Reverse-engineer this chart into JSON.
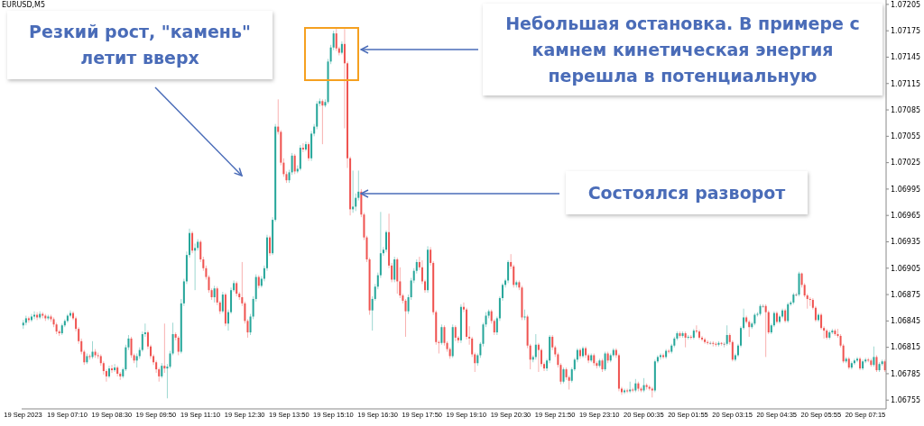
{
  "chart_data": {
    "type": "candlestick",
    "title": "EURUSD,M5",
    "categories": [
      "19 Sep 2023",
      null,
      null,
      null,
      null,
      null,
      null,
      null,
      null,
      null,
      null,
      null,
      null,
      null,
      null,
      null,
      "19 Sep 07:10",
      null,
      null,
      null,
      null,
      null,
      null,
      null,
      null,
      null,
      null,
      null,
      null,
      null,
      null,
      null,
      "19 Sep 08:30",
      null,
      null,
      null,
      null,
      null,
      null,
      null,
      null,
      null,
      null,
      null,
      null,
      null,
      null,
      null,
      "19 Sep 09:50",
      null,
      null,
      null,
      null,
      null,
      null,
      null,
      null,
      null,
      null,
      null,
      null,
      null,
      null,
      null,
      "19 Sep 11:10",
      null,
      null,
      null,
      null,
      null,
      null,
      null,
      null,
      null,
      null,
      null,
      null,
      null,
      null,
      null,
      "19 Sep 12:30",
      null,
      null,
      null,
      null,
      null,
      null,
      null,
      null,
      null,
      null,
      null,
      null,
      null,
      null,
      null,
      "19 Sep 13:50",
      null,
      null,
      null,
      null,
      null,
      null,
      null,
      null,
      null,
      null,
      null,
      null,
      null,
      null,
      null,
      "19 Sep 15:10",
      null,
      null,
      null,
      null,
      null,
      null,
      null,
      null,
      null,
      null,
      null,
      null,
      null,
      null,
      null,
      "19 Sep 16:30",
      null,
      null,
      null,
      null,
      null,
      null,
      null,
      null,
      null,
      null,
      null,
      null,
      null,
      null,
      null,
      "19 Sep 17:50",
      null,
      null,
      null,
      null,
      null,
      null,
      null,
      null,
      null,
      null,
      null,
      null,
      null,
      null,
      null,
      "19 Sep 19:10",
      null,
      null,
      null,
      null,
      null,
      null,
      null,
      null,
      null,
      null,
      null,
      null,
      null,
      null,
      null,
      "19 Sep 20:30",
      null,
      null,
      null,
      null,
      null,
      null,
      null,
      null,
      null,
      null,
      null,
      null,
      null,
      null,
      null,
      "19 Sep 21:50",
      null,
      null,
      null,
      null,
      null,
      null,
      null,
      null,
      null,
      null,
      null,
      null,
      null,
      null,
      null,
      "19 Sep 23:10",
      null,
      null,
      null,
      null,
      null,
      null,
      null,
      null,
      null,
      null,
      null,
      null,
      null,
      null,
      null,
      "20 Sep 00:35",
      null,
      null,
      null,
      null,
      null,
      null,
      null,
      null,
      null,
      null,
      null,
      null,
      null,
      null,
      null,
      "20 Sep 01:55",
      null,
      null,
      null,
      null,
      null,
      null,
      null,
      null,
      null,
      null,
      null,
      null,
      null,
      null,
      null,
      "20 Sep 03:15",
      null,
      null,
      null,
      null,
      null,
      null,
      null,
      null,
      null,
      null,
      null,
      null,
      null,
      null,
      null,
      "20 Sep 04:35",
      null,
      null,
      null,
      null,
      null,
      null,
      null,
      null,
      null,
      null,
      null,
      null,
      null,
      null,
      null,
      "20 Sep 05:55",
      null,
      null,
      null,
      null,
      null,
      null,
      null,
      null,
      null,
      null,
      null,
      null,
      null,
      null,
      null,
      "20 Sep 07:15",
      null,
      null,
      null,
      null,
      null,
      null,
      null
    ],
    "ohlc": [
      [
        1.0684,
        1.06846,
        1.06836,
        1.06843
      ],
      [
        1.06843,
        1.06851,
        1.0684,
        1.06848
      ],
      [
        1.06848,
        1.0685,
        1.06843,
        1.06846
      ],
      [
        1.06846,
        1.06853,
        1.06844,
        1.0685
      ],
      [
        1.0685,
        1.06856,
        1.06847,
        1.06852
      ],
      [
        1.06852,
        1.06855,
        1.06846,
        1.06849
      ],
      [
        1.06849,
        1.06856,
        1.06847,
        1.06853
      ],
      [
        1.06853,
        1.06855,
        1.06848,
        1.06851
      ],
      [
        1.06851,
        1.06853,
        1.06845,
        1.06848
      ],
      [
        1.06848,
        1.06852,
        1.06846,
        1.0685
      ],
      [
        1.0685,
        1.06852,
        1.06844,
        1.06847
      ],
      [
        1.06847,
        1.06849,
        1.06838,
        1.06841
      ],
      [
        1.06841,
        1.06843,
        1.0683,
        1.06833
      ],
      [
        1.06833,
        1.06835,
        1.06828,
        1.06831
      ],
      [
        1.06831,
        1.06842,
        1.06829,
        1.0684
      ],
      [
        1.0684,
        1.06847,
        1.06838,
        1.06845
      ],
      [
        1.06845,
        1.06853,
        1.06843,
        1.06851
      ],
      [
        1.06851,
        1.06857,
        1.06849,
        1.06854
      ],
      [
        1.06854,
        1.06856,
        1.06846,
        1.06848
      ],
      [
        1.06848,
        1.0685,
        1.06833,
        1.06836
      ],
      [
        1.06836,
        1.06838,
        1.06819,
        1.06822
      ],
      [
        1.06822,
        1.06825,
        1.06807,
        1.0681
      ],
      [
        1.0681,
        1.06812,
        1.06795,
        1.06798
      ],
      [
        1.06798,
        1.06808,
        1.06796,
        1.06805
      ],
      [
        1.06805,
        1.06807,
        1.06801,
        1.06804
      ],
      [
        1.06804,
        1.06822,
        1.06802,
        1.0681
      ],
      [
        1.0681,
        1.06813,
        1.06803,
        1.06806
      ],
      [
        1.06806,
        1.06809,
        1.06802,
        1.06805
      ],
      [
        1.06805,
        1.06807,
        1.06794,
        1.06797
      ],
      [
        1.06797,
        1.06799,
        1.06784,
        1.06788
      ],
      [
        1.06788,
        1.0679,
        1.06776,
        1.06782
      ],
      [
        1.06782,
        1.06794,
        1.0678,
        1.06791
      ],
      [
        1.06791,
        1.06795,
        1.06786,
        1.06789
      ],
      [
        1.06789,
        1.06796,
        1.06787,
        1.06792
      ],
      [
        1.06792,
        1.06794,
        1.06782,
        1.06785
      ],
      [
        1.06785,
        1.06787,
        1.06778,
        1.06782
      ],
      [
        1.06782,
        1.06792,
        1.0678,
        1.0679
      ],
      [
        1.0679,
        1.06818,
        1.06788,
        1.06815
      ],
      [
        1.06815,
        1.06829,
        1.06812,
        1.06825
      ],
      [
        1.06825,
        1.06827,
        1.06803,
        1.06806
      ],
      [
        1.06806,
        1.06808,
        1.06797,
        1.068
      ],
      [
        1.068,
        1.06808,
        1.06792,
        1.06805
      ],
      [
        1.06805,
        1.06815,
        1.06802,
        1.06812
      ],
      [
        1.06812,
        1.06833,
        1.0681,
        1.0683
      ],
      [
        1.0683,
        1.06842,
        1.06827,
        1.06832
      ],
      [
        1.06832,
        1.06834,
        1.06813,
        1.06816
      ],
      [
        1.06816,
        1.06818,
        1.06802,
        1.06805
      ],
      [
        1.06805,
        1.06807,
        1.06795,
        1.06798
      ],
      [
        1.06798,
        1.068,
        1.06786,
        1.0679
      ],
      [
        1.0679,
        1.06792,
        1.06776,
        1.06782
      ],
      [
        1.06782,
        1.06797,
        1.0678,
        1.06794
      ],
      [
        1.06794,
        1.06842,
        1.06786,
        1.06791
      ],
      [
        1.06791,
        1.06796,
        1.06757,
        1.06793
      ],
      [
        1.06793,
        1.06811,
        1.06791,
        1.06808
      ],
      [
        1.06808,
        1.06843,
        1.06806,
        1.0683
      ],
      [
        1.0683,
        1.06832,
        1.06823,
        1.06826
      ],
      [
        1.06826,
        1.06828,
        1.06806,
        1.0681
      ],
      [
        1.0681,
        1.0687,
        1.06808,
        1.06865
      ],
      [
        1.06865,
        1.06893,
        1.06862,
        1.0689
      ],
      [
        1.0689,
        1.06924,
        1.06887,
        1.0692
      ],
      [
        1.0692,
        1.0695,
        1.06917,
        1.06945
      ],
      [
        1.06945,
        1.06947,
        1.06922,
        1.06925
      ],
      [
        1.06925,
        1.06933,
        1.0688,
        1.06928
      ],
      [
        1.06928,
        1.06938,
        1.06925,
        1.06935
      ],
      [
        1.06935,
        1.06937,
        1.06912,
        1.06915
      ],
      [
        1.06915,
        1.06918,
        1.06902,
        1.06905
      ],
      [
        1.06905,
        1.06908,
        1.06892,
        1.06895
      ],
      [
        1.06895,
        1.06897,
        1.06877,
        1.0688
      ],
      [
        1.0688,
        1.06882,
        1.06869,
        1.06872
      ],
      [
        1.06872,
        1.06885,
        1.06866,
        1.06882
      ],
      [
        1.06882,
        1.06884,
        1.06863,
        1.06866
      ],
      [
        1.06866,
        1.06868,
        1.06853,
        1.06856
      ],
      [
        1.06856,
        1.06878,
        1.06854,
        1.06875
      ],
      [
        1.06875,
        1.06877,
        1.06839,
        1.06842
      ],
      [
        1.06842,
        1.06858,
        1.06834,
        1.06855
      ],
      [
        1.06855,
        1.06883,
        1.06853,
        1.0688
      ],
      [
        1.0688,
        1.06891,
        1.06878,
        1.06888
      ],
      [
        1.06888,
        1.0689,
        1.06873,
        1.06876
      ],
      [
        1.06876,
        1.06878,
        1.06869,
        1.06872
      ],
      [
        1.06872,
        1.06912,
        1.06862,
        1.06865
      ],
      [
        1.06865,
        1.06867,
        1.06842,
        1.06845
      ],
      [
        1.06845,
        1.06847,
        1.06826,
        1.06832
      ],
      [
        1.06832,
        1.06853,
        1.06829,
        1.0685
      ],
      [
        1.0685,
        1.06873,
        1.06847,
        1.0687
      ],
      [
        1.0687,
        1.06898,
        1.06867,
        1.06895
      ],
      [
        1.06895,
        1.06897,
        1.06882,
        1.06885
      ],
      [
        1.06885,
        1.06896,
        1.06883,
        1.06893
      ],
      [
        1.06893,
        1.06908,
        1.0689,
        1.06905
      ],
      [
        1.06905,
        1.06943,
        1.06902,
        1.0694
      ],
      [
        1.0694,
        1.06942,
        1.06919,
        1.06922
      ],
      [
        1.06922,
        1.06963,
        1.0692,
        1.0696
      ],
      [
        1.0696,
        1.07069,
        1.06958,
        1.07066
      ],
      [
        1.07066,
        1.07097,
        1.07057,
        1.0706
      ],
      [
        1.0706,
        1.07062,
        1.07022,
        1.07025
      ],
      [
        1.07025,
        1.0703,
        1.07009,
        1.07012
      ],
      [
        1.07012,
        1.07015,
        1.07002,
        1.07005
      ],
      [
        1.07005,
        1.07017,
        1.07002,
        1.07014
      ],
      [
        1.07014,
        1.07036,
        1.07011,
        1.07033
      ],
      [
        1.07033,
        1.07035,
        1.07012,
        1.07015
      ],
      [
        1.07015,
        1.07022,
        1.07013,
        1.07018
      ],
      [
        1.07018,
        1.07045,
        1.07016,
        1.07042
      ],
      [
        1.07042,
        1.07047,
        1.07037,
        1.0704
      ],
      [
        1.0704,
        1.07049,
        1.07038,
        1.07046
      ],
      [
        1.07046,
        1.07048,
        1.07027,
        1.0703
      ],
      [
        1.0703,
        1.07061,
        1.07027,
        1.07058
      ],
      [
        1.07058,
        1.07069,
        1.07055,
        1.07066
      ],
      [
        1.07066,
        1.07095,
        1.07063,
        1.07092
      ],
      [
        1.07092,
        1.07098,
        1.07089,
        1.07095
      ],
      [
        1.07095,
        1.07097,
        1.07046,
        1.0709
      ],
      [
        1.0709,
        1.07097,
        1.07088,
        1.07094
      ],
      [
        1.07094,
        1.07143,
        1.07092,
        1.0714
      ],
      [
        1.0714,
        1.07159,
        1.07137,
        1.07156
      ],
      [
        1.07156,
        1.07175,
        1.07153,
        1.07172
      ],
      [
        1.07172,
        1.07179,
        1.07152,
        1.07155
      ],
      [
        1.07155,
        1.07157,
        1.07147,
        1.0715
      ],
      [
        1.0715,
        1.07163,
        1.07148,
        1.0716
      ],
      [
        1.0716,
        1.07177,
        1.07064,
        1.07138
      ],
      [
        1.07138,
        1.0714,
        1.07019,
        1.0703
      ],
      [
        1.0703,
        1.07032,
        1.06965,
        1.06972
      ],
      [
        1.06972,
        1.07016,
        1.06968,
        1.06975
      ],
      [
        1.06975,
        1.0699,
        1.0697,
        1.06985
      ],
      [
        1.06985,
        1.07016,
        1.06982,
        1.06992
      ],
      [
        1.06992,
        1.06995,
        1.06963,
        1.06966
      ],
      [
        1.06966,
        1.06968,
        1.06937,
        1.0694
      ],
      [
        1.0694,
        1.06942,
        1.06912,
        1.06915
      ],
      [
        1.06915,
        1.06917,
        1.06852,
        1.06857
      ],
      [
        1.06857,
        1.06873,
        1.06834,
        1.0687
      ],
      [
        1.0687,
        1.06887,
        1.06868,
        1.06884
      ],
      [
        1.06884,
        1.069,
        1.06881,
        1.06897
      ],
      [
        1.06897,
        1.06969,
        1.06894,
        1.06922
      ],
      [
        1.06922,
        1.06929,
        1.06919,
        1.06926
      ],
      [
        1.06926,
        1.06948,
        1.06923,
        1.06946
      ],
      [
        1.06946,
        1.06967,
        1.06905,
        1.06908
      ],
      [
        1.06908,
        1.06911,
        1.06889,
        1.06892
      ],
      [
        1.06892,
        1.06918,
        1.06889,
        1.06915
      ],
      [
        1.06915,
        1.06917,
        1.06876,
        1.0689
      ],
      [
        1.0689,
        1.06906,
        1.06871,
        1.06874
      ],
      [
        1.06874,
        1.06876,
        1.06865,
        1.06868
      ],
      [
        1.06868,
        1.0687,
        1.06827,
        1.06856
      ],
      [
        1.06856,
        1.06875,
        1.06853,
        1.06872
      ],
      [
        1.06872,
        1.06894,
        1.06869,
        1.06891
      ],
      [
        1.06891,
        1.06905,
        1.06888,
        1.06902
      ],
      [
        1.06902,
        1.06915,
        1.06899,
        1.06912
      ],
      [
        1.06912,
        1.06918,
        1.06903,
        1.06906
      ],
      [
        1.06906,
        1.06914,
        1.06887,
        1.0689
      ],
      [
        1.0689,
        1.06892,
        1.06877,
        1.0688
      ],
      [
        1.0688,
        1.0693,
        1.06877,
        1.06926
      ],
      [
        1.06926,
        1.06929,
        1.06908,
        1.06911
      ],
      [
        1.06911,
        1.06913,
        1.06852,
        1.06855
      ],
      [
        1.06855,
        1.06857,
        1.06818,
        1.06821
      ],
      [
        1.06821,
        1.06823,
        1.06808,
        1.0682
      ],
      [
        1.0682,
        1.06841,
        1.06818,
        1.06838
      ],
      [
        1.06838,
        1.0684,
        1.06817,
        1.0682
      ],
      [
        1.0682,
        1.06822,
        1.0681,
        1.06813
      ],
      [
        1.06813,
        1.06815,
        1.06802,
        1.06805
      ],
      [
        1.06805,
        1.06841,
        1.06803,
        1.06838
      ],
      [
        1.06838,
        1.0684,
        1.06822,
        1.06826
      ],
      [
        1.06826,
        1.06828,
        1.0682,
        1.06823
      ],
      [
        1.06823,
        1.06864,
        1.0682,
        1.06861
      ],
      [
        1.06861,
        1.06866,
        1.06855,
        1.06858
      ],
      [
        1.06858,
        1.0686,
        1.06824,
        1.06827
      ],
      [
        1.06827,
        1.06839,
        1.06818,
        1.06825
      ],
      [
        1.06825,
        1.06827,
        1.06804,
        1.06807
      ],
      [
        1.06807,
        1.06809,
        1.06787,
        1.06797
      ],
      [
        1.06797,
        1.06808,
        1.06794,
        1.06806
      ],
      [
        1.06806,
        1.06821,
        1.06803,
        1.06819
      ],
      [
        1.06819,
        1.06843,
        1.06816,
        1.06841
      ],
      [
        1.06841,
        1.06855,
        1.06838,
        1.06851
      ],
      [
        1.06851,
        1.06858,
        1.06848,
        1.06856
      ],
      [
        1.06856,
        1.06858,
        1.06842,
        1.06845
      ],
      [
        1.06845,
        1.06847,
        1.06829,
        1.06832
      ],
      [
        1.06832,
        1.0685,
        1.06829,
        1.06848
      ],
      [
        1.06848,
        1.06873,
        1.06845,
        1.06871
      ],
      [
        1.06871,
        1.06888,
        1.06868,
        1.06886
      ],
      [
        1.06886,
        1.06893,
        1.06883,
        1.06891
      ],
      [
        1.06891,
        1.06914,
        1.06888,
        1.06912
      ],
      [
        1.06912,
        1.06921,
        1.06904,
        1.06907
      ],
      [
        1.06907,
        1.06909,
        1.06883,
        1.06886
      ],
      [
        1.06886,
        1.06891,
        1.06883,
        1.06889
      ],
      [
        1.06889,
        1.06891,
        1.0688,
        1.06883
      ],
      [
        1.06883,
        1.06885,
        1.06846,
        1.06849
      ],
      [
        1.06849,
        1.06858,
        1.06846,
        1.0685
      ],
      [
        1.0685,
        1.06852,
        1.06814,
        1.06817
      ],
      [
        1.06817,
        1.06819,
        1.0679,
        1.06801
      ],
      [
        1.06801,
        1.06806,
        1.06798,
        1.06804
      ],
      [
        1.06804,
        1.0683,
        1.06801,
        1.06818
      ],
      [
        1.06818,
        1.0682,
        1.06787,
        1.06812
      ],
      [
        1.06812,
        1.06814,
        1.06793,
        1.06796
      ],
      [
        1.06796,
        1.06798,
        1.06788,
        1.06791
      ],
      [
        1.06791,
        1.06802,
        1.06788,
        1.068
      ],
      [
        1.068,
        1.06829,
        1.06797,
        1.06827
      ],
      [
        1.06827,
        1.06829,
        1.06812,
        1.06815
      ],
      [
        1.06815,
        1.06817,
        1.06804,
        1.06807
      ],
      [
        1.06807,
        1.06809,
        1.06792,
        1.06795
      ],
      [
        1.06795,
        1.06797,
        1.06773,
        1.06776
      ],
      [
        1.06776,
        1.06792,
        1.06774,
        1.0679
      ],
      [
        1.0679,
        1.06792,
        1.06778,
        1.06781
      ],
      [
        1.06781,
        1.06783,
        1.06767,
        1.06777
      ],
      [
        1.06777,
        1.06792,
        1.06775,
        1.0679
      ],
      [
        1.0679,
        1.06803,
        1.06788,
        1.06801
      ],
      [
        1.06801,
        1.06814,
        1.06798,
        1.06812
      ],
      [
        1.06812,
        1.06814,
        1.06802,
        1.06805
      ],
      [
        1.06805,
        1.06816,
        1.06803,
        1.06814
      ],
      [
        1.06814,
        1.06816,
        1.06803,
        1.06806
      ],
      [
        1.06806,
        1.06808,
        1.06797,
        1.068
      ],
      [
        1.068,
        1.06808,
        1.06798,
        1.06806
      ],
      [
        1.06806,
        1.06808,
        1.06794,
        1.06797
      ],
      [
        1.06797,
        1.06799,
        1.06791,
        1.06794
      ],
      [
        1.06794,
        1.06802,
        1.06792,
        1.068
      ],
      [
        1.068,
        1.06802,
        1.06787,
        1.0679
      ],
      [
        1.0679,
        1.0681,
        1.06788,
        1.06808
      ],
      [
        1.06808,
        1.0681,
        1.06797,
        1.068
      ],
      [
        1.068,
        1.06808,
        1.06798,
        1.06806
      ],
      [
        1.06806,
        1.06814,
        1.06804,
        1.06812
      ],
      [
        1.06812,
        1.06814,
        1.06803,
        1.06806
      ],
      [
        1.06806,
        1.06808,
        1.06765,
        1.06768
      ],
      [
        1.06768,
        1.0677,
        1.06761,
        1.06764
      ],
      [
        1.06764,
        1.06768,
        1.06762,
        1.06766
      ],
      [
        1.06766,
        1.06768,
        1.06763,
        1.06765
      ],
      [
        1.06765,
        1.06776,
        1.06763,
        1.06767
      ],
      [
        1.06767,
        1.06769,
        1.06764,
        1.06766
      ],
      [
        1.06766,
        1.06779,
        1.06764,
        1.06774
      ],
      [
        1.06774,
        1.06776,
        1.06765,
        1.06768
      ],
      [
        1.06768,
        1.0677,
        1.06764,
        1.06766
      ],
      [
        1.06766,
        1.0678,
        1.06764,
        1.06772
      ],
      [
        1.06772,
        1.06774,
        1.06767,
        1.0677
      ],
      [
        1.0677,
        1.06772,
        1.06766,
        1.06768
      ],
      [
        1.06768,
        1.0677,
        1.06758,
        1.06766
      ],
      [
        1.06766,
        1.06801,
        1.06764,
        1.06799
      ],
      [
        1.06799,
        1.06806,
        1.06797,
        1.06804
      ],
      [
        1.06804,
        1.06808,
        1.06801,
        1.06806
      ],
      [
        1.06806,
        1.06808,
        1.06802,
        1.06804
      ],
      [
        1.06804,
        1.06813,
        1.06802,
        1.06811
      ],
      [
        1.06811,
        1.06813,
        1.06808,
        1.0681
      ],
      [
        1.0681,
        1.06819,
        1.06808,
        1.06817
      ],
      [
        1.06817,
        1.06827,
        1.06815,
        1.06825
      ],
      [
        1.06825,
        1.06833,
        1.06823,
        1.06831
      ],
      [
        1.06831,
        1.06833,
        1.06826,
        1.06828
      ],
      [
        1.06828,
        1.06833,
        1.06826,
        1.06831
      ],
      [
        1.06831,
        1.06833,
        1.06815,
        1.06826
      ],
      [
        1.06826,
        1.06829,
        1.06824,
        1.06827
      ],
      [
        1.06827,
        1.06829,
        1.06824,
        1.06826
      ],
      [
        1.06826,
        1.06836,
        1.06824,
        1.06834
      ],
      [
        1.06834,
        1.0684,
        1.06831,
        1.06833
      ],
      [
        1.06833,
        1.06835,
        1.06824,
        1.06826
      ],
      [
        1.06826,
        1.06828,
        1.06822,
        1.06824
      ],
      [
        1.06824,
        1.06826,
        1.06819,
        1.06821
      ],
      [
        1.06821,
        1.06823,
        1.06818,
        1.0682
      ],
      [
        1.0682,
        1.06822,
        1.06818,
        1.0682
      ],
      [
        1.0682,
        1.06822,
        1.06816,
        1.06819
      ],
      [
        1.06819,
        1.06821,
        1.06816,
        1.06818
      ],
      [
        1.06818,
        1.06822,
        1.06816,
        1.0682
      ],
      [
        1.0682,
        1.06821,
        1.06817,
        1.06819
      ],
      [
        1.06819,
        1.06821,
        1.06815,
        1.06819
      ],
      [
        1.06819,
        1.0684,
        1.06817,
        1.06829
      ],
      [
        1.06829,
        1.06831,
        1.06818,
        1.06821
      ],
      [
        1.06821,
        1.06823,
        1.06799,
        1.06801
      ],
      [
        1.06801,
        1.06808,
        1.06799,
        1.06806
      ],
      [
        1.06806,
        1.06819,
        1.06804,
        1.06817
      ],
      [
        1.06817,
        1.06839,
        1.06815,
        1.06837
      ],
      [
        1.06837,
        1.06859,
        1.06835,
        1.06849
      ],
      [
        1.06849,
        1.06851,
        1.06842,
        1.06844
      ],
      [
        1.06844,
        1.06846,
        1.06827,
        1.06838
      ],
      [
        1.06838,
        1.06844,
        1.06836,
        1.06842
      ],
      [
        1.06842,
        1.06854,
        1.0684,
        1.06852
      ],
      [
        1.06852,
        1.06855,
        1.0685,
        1.06853
      ],
      [
        1.06853,
        1.06864,
        1.06851,
        1.06862
      ],
      [
        1.06862,
        1.06864,
        1.0686,
        1.06862
      ],
      [
        1.06862,
        1.06864,
        1.06804,
        1.06855
      ],
      [
        1.06855,
        1.06857,
        1.0683,
        1.06832
      ],
      [
        1.06832,
        1.06842,
        1.0683,
        1.0684
      ],
      [
        1.0684,
        1.06856,
        1.06838,
        1.06854
      ],
      [
        1.06854,
        1.06856,
        1.06842,
        1.06844
      ],
      [
        1.06844,
        1.06852,
        1.06842,
        1.0685
      ],
      [
        1.0685,
        1.06859,
        1.06848,
        1.06857
      ],
      [
        1.06857,
        1.06859,
        1.06843,
        1.06845
      ],
      [
        1.06845,
        1.06866,
        1.06843,
        1.06864
      ],
      [
        1.06864,
        1.06868,
        1.06862,
        1.06866
      ],
      [
        1.06866,
        1.06877,
        1.06864,
        1.06875
      ],
      [
        1.06875,
        1.06877,
        1.06873,
        1.06875
      ],
      [
        1.06875,
        1.06901,
        1.06873,
        1.06899
      ],
      [
        1.06899,
        1.069,
        1.06883,
        1.06886
      ],
      [
        1.06886,
        1.06888,
        1.06872,
        1.06874
      ],
      [
        1.06874,
        1.06876,
        1.06859,
        1.0687
      ],
      [
        1.0687,
        1.06872,
        1.06862,
        1.06869
      ],
      [
        1.06869,
        1.06871,
        1.06858,
        1.0686
      ],
      [
        1.0686,
        1.06862,
        1.06844,
        1.06846
      ],
      [
        1.06846,
        1.06854,
        1.06844,
        1.06852
      ],
      [
        1.06852,
        1.06854,
        1.06835,
        1.06837
      ],
      [
        1.06837,
        1.06839,
        1.06825,
        1.06834
      ],
      [
        1.06834,
        1.06836,
        1.06824,
        1.06826
      ],
      [
        1.06826,
        1.06834,
        1.06824,
        1.06832
      ],
      [
        1.06832,
        1.06836,
        1.0683,
        1.06834
      ],
      [
        1.06834,
        1.06836,
        1.06828,
        1.0683
      ],
      [
        1.0683,
        1.06836,
        1.06826,
        1.06828
      ],
      [
        1.06828,
        1.0683,
        1.06815,
        1.06817
      ],
      [
        1.06817,
        1.06819,
        1.06797,
        1.06799
      ],
      [
        1.06799,
        1.06804,
        1.06797,
        1.06802
      ],
      [
        1.06802,
        1.06804,
        1.0679,
        1.06792
      ],
      [
        1.06792,
        1.06799,
        1.0679,
        1.06797
      ],
      [
        1.06797,
        1.06802,
        1.06795,
        1.068
      ],
      [
        1.068,
        1.06804,
        1.06798,
        1.06802
      ],
      [
        1.06802,
        1.06804,
        1.06789,
        1.06791
      ],
      [
        1.06791,
        1.06801,
        1.06789,
        1.06799
      ],
      [
        1.06799,
        1.06803,
        1.06797,
        1.06801
      ],
      [
        1.06801,
        1.06803,
        1.06798,
        1.068
      ],
      [
        1.068,
        1.06802,
        1.06793,
        1.06795
      ],
      [
        1.06795,
        1.06816,
        1.06793,
        1.06804
      ],
      [
        1.06804,
        1.06806,
        1.06787,
        1.06789
      ],
      [
        1.06789,
        1.06798,
        1.06787,
        1.06796
      ],
      [
        1.06796,
        1.06801,
        1.06794,
        1.06799
      ],
      [
        1.06799,
        1.06801,
        1.06787,
        1.06789
      ]
    ],
    "colors": [
      "#26a69a",
      "#26a69a",
      "#ef5350",
      "#26a69a",
      "#26a69a",
      "#ef5350",
      "#26a69a",
      "#ef5350",
      "#ef5350",
      "#26a69a",
      "#ef5350",
      "#ef5350",
      "#ef5350",
      "#ef5350",
      "#26a69a",
      "#26a69a",
      "#26a69a",
      "#26a69a",
      "#ef5350",
      "#ef5350",
      "#ef5350",
      "#ef5350",
      "#ef5350",
      "#26a69a",
      "#ef5350",
      "#26a69a",
      "#ef5350",
      "#ef5350",
      "#ef5350",
      "#ef5350",
      "#ef5350",
      "#26a69a",
      "#ef5350",
      "#26a69a",
      "#ef5350",
      "#ef5350",
      "#26a69a",
      "#26a69a",
      "#26a69a",
      "#ef5350",
      "#ef5350",
      "#26a69a",
      "#26a69a",
      "#26a69a",
      "#26a69a",
      "#ef5350",
      "#ef5350",
      "#ef5350",
      "#ef5350",
      "#ef5350",
      "#26a69a",
      "#ef5350",
      "#26a69a",
      "#26a69a",
      "#26a69a",
      "#ef5350",
      "#ef5350",
      "#26a69a",
      "#26a69a",
      "#26a69a",
      "#26a69a",
      "#ef5350",
      "#26a69a",
      "#26a69a",
      "#ef5350",
      "#ef5350",
      "#ef5350",
      "#ef5350",
      "#ef5350",
      "#26a69a",
      "#ef5350",
      "#ef5350",
      "#26a69a",
      "#ef5350",
      "#26a69a",
      "#26a69a",
      "#26a69a",
      "#ef5350",
      "#ef5350",
      "#ef5350",
      "#ef5350",
      "#ef5350",
      "#26a69a",
      "#26a69a",
      "#26a69a",
      "#ef5350",
      "#26a69a",
      "#26a69a",
      "#26a69a",
      "#ef5350",
      "#26a69a",
      "#26a69a",
      "#ef5350",
      "#ef5350",
      "#ef5350",
      "#ef5350",
      "#26a69a",
      "#26a69a",
      "#ef5350",
      "#26a69a",
      "#26a69a",
      "#ef5350",
      "#26a69a",
      "#ef5350",
      "#26a69a",
      "#26a69a",
      "#26a69a",
      "#26a69a",
      "#ef5350",
      "#26a69a",
      "#26a69a",
      "#26a69a",
      "#26a69a",
      "#ef5350",
      "#ef5350",
      "#26a69a",
      "#ef5350",
      "#ef5350",
      "#ef5350",
      "#26a69a",
      "#26a69a",
      "#26a69a",
      "#ef5350",
      "#ef5350",
      "#ef5350",
      "#ef5350",
      "#26a69a",
      "#26a69a",
      "#26a69a",
      "#26a69a",
      "#26a69a",
      "#26a69a",
      "#ef5350",
      "#ef5350",
      "#26a69a",
      "#ef5350",
      "#ef5350",
      "#ef5350",
      "#ef5350",
      "#26a69a",
      "#26a69a",
      "#26a69a",
      "#26a69a",
      "#ef5350",
      "#ef5350",
      "#ef5350",
      "#26a69a",
      "#ef5350",
      "#ef5350",
      "#ef5350",
      "#ef5350",
      "#26a69a",
      "#ef5350",
      "#ef5350",
      "#ef5350",
      "#26a69a",
      "#ef5350",
      "#ef5350",
      "#26a69a",
      "#ef5350",
      "#ef5350",
      "#ef5350",
      "#ef5350",
      "#ef5350",
      "#26a69a",
      "#26a69a",
      "#26a69a",
      "#26a69a",
      "#26a69a",
      "#ef5350",
      "#ef5350",
      "#26a69a",
      "#26a69a",
      "#26a69a",
      "#26a69a",
      "#26a69a",
      "#ef5350",
      "#ef5350",
      "#26a69a",
      "#ef5350",
      "#ef5350",
      "#26a69a",
      "#ef5350",
      "#ef5350",
      "#26a69a",
      "#26a69a",
      "#ef5350",
      "#ef5350",
      "#ef5350",
      "#26a69a",
      "#26a69a",
      "#ef5350",
      "#ef5350",
      "#ef5350",
      "#ef5350",
      "#26a69a",
      "#ef5350",
      "#ef5350",
      "#26a69a",
      "#26a69a",
      "#26a69a",
      "#ef5350",
      "#26a69a",
      "#ef5350",
      "#ef5350",
      "#26a69a",
      "#ef5350",
      "#ef5350",
      "#26a69a",
      "#ef5350",
      "#26a69a",
      "#ef5350",
      "#26a69a",
      "#26a69a",
      "#ef5350",
      "#ef5350",
      "#ef5350",
      "#26a69a",
      "#ef5350",
      "#26a69a",
      "#ef5350",
      "#26a69a",
      "#ef5350",
      "#ef5350",
      "#26a69a",
      "#ef5350",
      "#ef5350",
      "#ef5350",
      "#26a69a",
      "#26a69a",
      "#26a69a",
      "#ef5350",
      "#26a69a",
      "#ef5350",
      "#26a69a",
      "#26a69a",
      "#26a69a",
      "#ef5350",
      "#26a69a",
      "#ef5350",
      "#26a69a",
      "#ef5350",
      "#26a69a",
      "#ef5350",
      "#ef5350",
      "#ef5350",
      "#ef5350",
      "#ef5350",
      "#888888",
      "#ef5350",
      "#ef5350",
      "#26a69a",
      "#ef5350",
      "#888888",
      "#26a69a",
      "#ef5350",
      "#ef5350",
      "#26a69a",
      "#26a69a",
      "#26a69a",
      "#26a69a",
      "#ef5350",
      "#ef5350",
      "#26a69a",
      "#26a69a",
      "#26a69a",
      "#26a69a",
      "#888888",
      "#ef5350",
      "#ef5350",
      "#26a69a",
      "#26a69a",
      "#ef5350",
      "#26a69a",
      "#26a69a",
      "#ef5350",
      "#26a69a",
      "#26a69a",
      "#26a69a",
      "#888888",
      "#26a69a",
      "#ef5350",
      "#ef5350",
      "#ef5350",
      "#ef5350",
      "#ef5350",
      "#ef5350",
      "#26a69a",
      "#ef5350",
      "#ef5350",
      "#ef5350",
      "#26a69a",
      "#26a69a",
      "#ef5350",
      "#ef5350",
      "#ef5350",
      "#ef5350",
      "#26a69a",
      "#ef5350",
      "#26a69a",
      "#26a69a",
      "#26a69a",
      "#ef5350",
      "#26a69a",
      "#26a69a",
      "#ef5350",
      "#ef5350",
      "#26a69a",
      "#ef5350",
      "#26a69a",
      "#26a69a",
      "#ef5350"
    ],
    "ylim": [
      1.06745,
      1.0721
    ],
    "yticks": [
      1.07205,
      1.07175,
      1.07145,
      1.07115,
      1.07085,
      1.07055,
      1.07025,
      1.06995,
      1.06965,
      1.06935,
      1.06905,
      1.06875,
      1.06845,
      1.06815,
      1.06785,
      1.06755
    ],
    "annotations": [
      "Резкий рост, \"камень\" летит вверх",
      "Небольшая остановка. В примере с камнем кинетическая энергия перешла в потенциальную",
      "Состоялся разворот"
    ]
  }
}
